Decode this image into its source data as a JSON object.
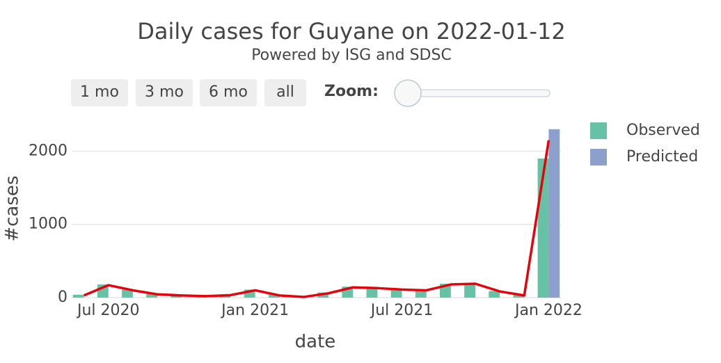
{
  "chart_data": {
    "type": "bar",
    "title": "Daily cases for Guyane on 2022-01-12",
    "subtitle": "Powered by ISG and SDSC",
    "xlabel": "date",
    "ylabel": "#cases",
    "x": [
      "2020-06",
      "2020-07",
      "2020-08",
      "2020-09",
      "2020-10",
      "2020-11",
      "2020-12",
      "2021-01",
      "2021-02",
      "2021-03",
      "2021-04",
      "2021-05",
      "2021-06",
      "2021-07",
      "2021-08",
      "2021-09",
      "2021-10",
      "2021-11",
      "2021-12",
      "2022-01"
    ],
    "xlim": [
      "2020-06",
      "2022-01"
    ],
    "xticks": [
      {
        "value": "2020-07",
        "label": "Jul 2020"
      },
      {
        "value": "2021-01",
        "label": "Jan 2021"
      },
      {
        "value": "2021-07",
        "label": "Jul 2021"
      },
      {
        "value": "2022-01",
        "label": "Jan 2022"
      }
    ],
    "ylim": [
      0,
      2450
    ],
    "yticks": [
      0,
      1000,
      2000
    ],
    "grid": true,
    "series": [
      {
        "name": "Observed",
        "color": "#66c2a5",
        "values": [
          40,
          180,
          110,
          50,
          35,
          25,
          40,
          110,
          40,
          15,
          70,
          150,
          140,
          120,
          110,
          190,
          200,
          90,
          40,
          1900
        ]
      },
      {
        "name": "Predicted",
        "color": "#8da0cb",
        "values": [
          null,
          null,
          null,
          null,
          null,
          null,
          null,
          null,
          null,
          null,
          null,
          null,
          null,
          null,
          null,
          null,
          null,
          null,
          null,
          2300
        ]
      },
      {
        "color": "#e8000b",
        "type": "line",
        "values": [
          30,
          170,
          100,
          45,
          30,
          20,
          35,
          100,
          30,
          10,
          60,
          140,
          130,
          110,
          100,
          180,
          190,
          85,
          30,
          2150
        ]
      }
    ],
    "legend": "right",
    "controls": {
      "buttons": [
        "1 mo",
        "3 mo",
        "6 mo",
        "all"
      ],
      "zoom": "Zoom:"
    }
  }
}
